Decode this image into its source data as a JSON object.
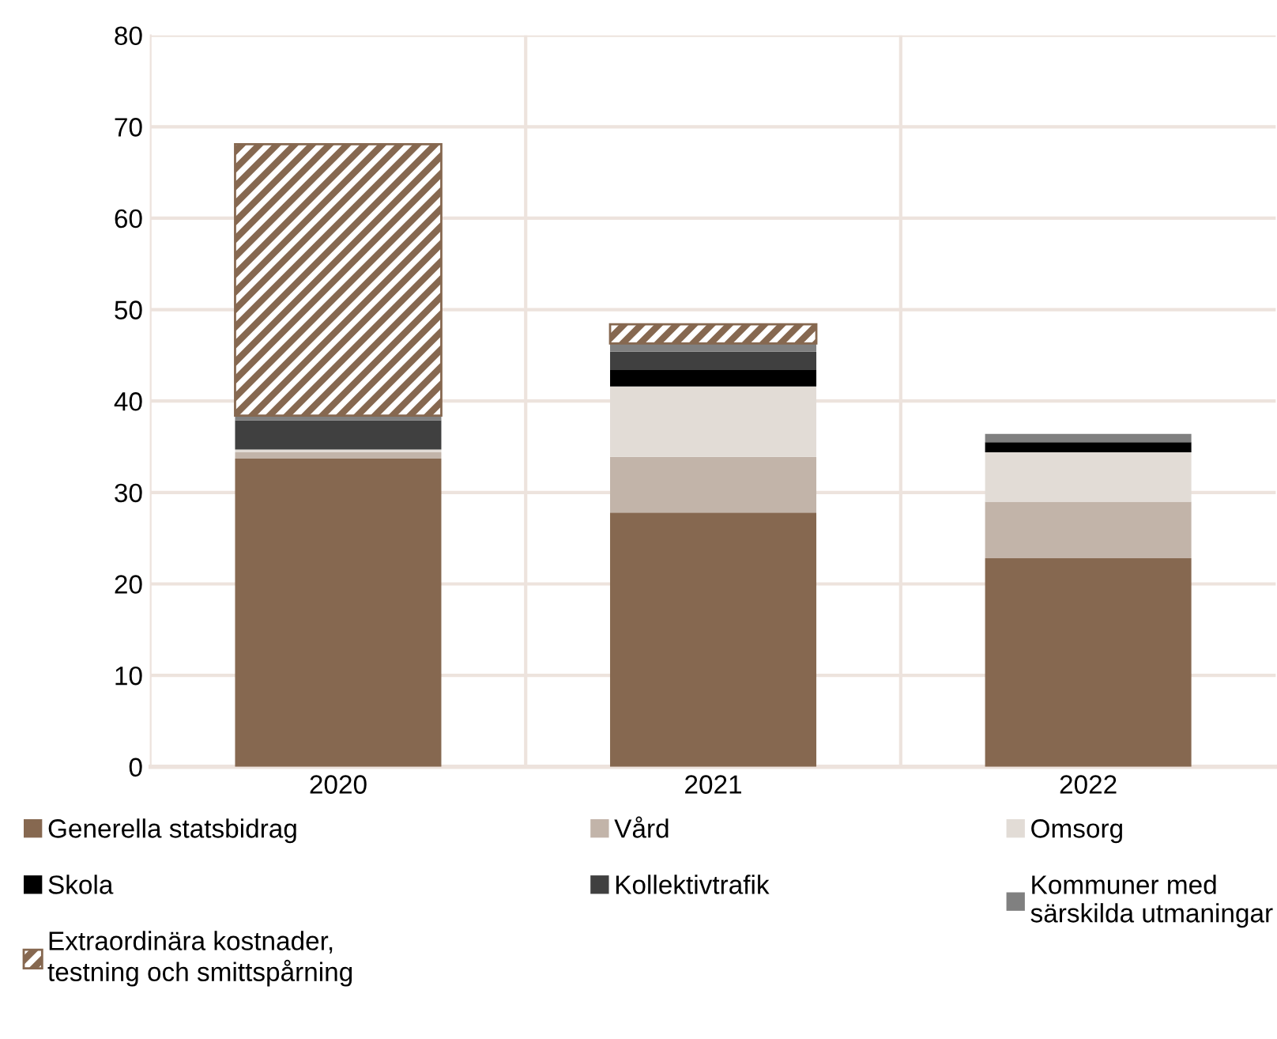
{
  "chart_data": {
    "type": "bar",
    "stacked": true,
    "categories": [
      "2020",
      "2021",
      "2022"
    ],
    "series": [
      {
        "name": "Generella statsbidrag",
        "color": "#866850",
        "values": [
          33.7,
          27.8,
          22.8
        ]
      },
      {
        "name": "Vård",
        "color": "#c2b4a9",
        "values": [
          0.7,
          6.1,
          6.2
        ]
      },
      {
        "name": "Omsorg",
        "color": "#e2dcd6",
        "values": [
          0.3,
          7.7,
          5.4
        ]
      },
      {
        "name": "Skola",
        "color": "#000000",
        "values": [
          0,
          1.8,
          1.1
        ]
      },
      {
        "name": "Kollektivtrafik",
        "color": "#404040",
        "values": [
          3.2,
          2.0,
          0
        ]
      },
      {
        "name": "Kommuner med\nsärskilda utmaningar",
        "color": "#808080",
        "values": [
          0.5,
          0.9,
          0.9
        ]
      },
      {
        "name": "Extraordinära kostnader,\ntestning och smittspårning",
        "color": "#866850",
        "values": [
          29.7,
          2.1,
          null
        ]
      }
    ],
    "ylim": [
      0,
      80
    ],
    "yticks": [
      0,
      10,
      20,
      30,
      40,
      50,
      60,
      70,
      80
    ],
    "grid": true,
    "legend": "bottom"
  }
}
